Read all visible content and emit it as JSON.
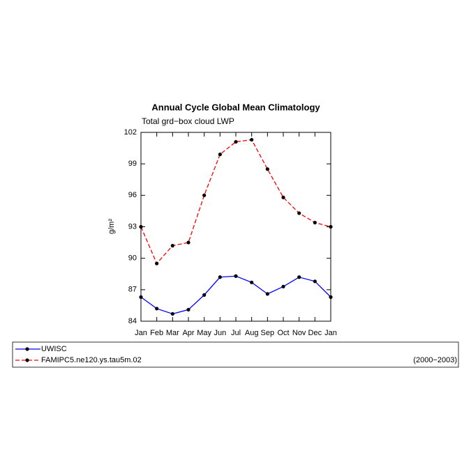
{
  "chart_data": {
    "type": "line",
    "title": "Annual Cycle Global Mean Climatology",
    "subtitle": "Total grd−box cloud LWP",
    "y_label": "g/m²",
    "annotation": "(2000−2003)",
    "categories": [
      "Jan",
      "Feb",
      "Mar",
      "Apr",
      "May",
      "Jun",
      "Jul",
      "Aug",
      "Sep",
      "Oct",
      "Nov",
      "Dec",
      "Jan"
    ],
    "series": [
      {
        "name": "UWISC",
        "color": "#0000ff",
        "linestyle": "solid",
        "values": [
          86.3,
          85.2,
          84.7,
          85.1,
          86.5,
          88.2,
          88.3,
          87.7,
          86.6,
          87.3,
          88.2,
          87.8,
          86.3
        ]
      },
      {
        "name": "FAMIPC5.ne120.ys.tau5m.02",
        "color": "#ff0000",
        "linestyle": "dashed",
        "values": [
          93.0,
          89.5,
          91.2,
          91.5,
          96.0,
          99.9,
          101.1,
          101.3,
          98.5,
          95.8,
          94.3,
          93.4,
          93.0
        ]
      }
    ],
    "ylim": [
      84,
      102
    ],
    "yticks": [
      84,
      87,
      90,
      93,
      96,
      99,
      102
    ]
  }
}
